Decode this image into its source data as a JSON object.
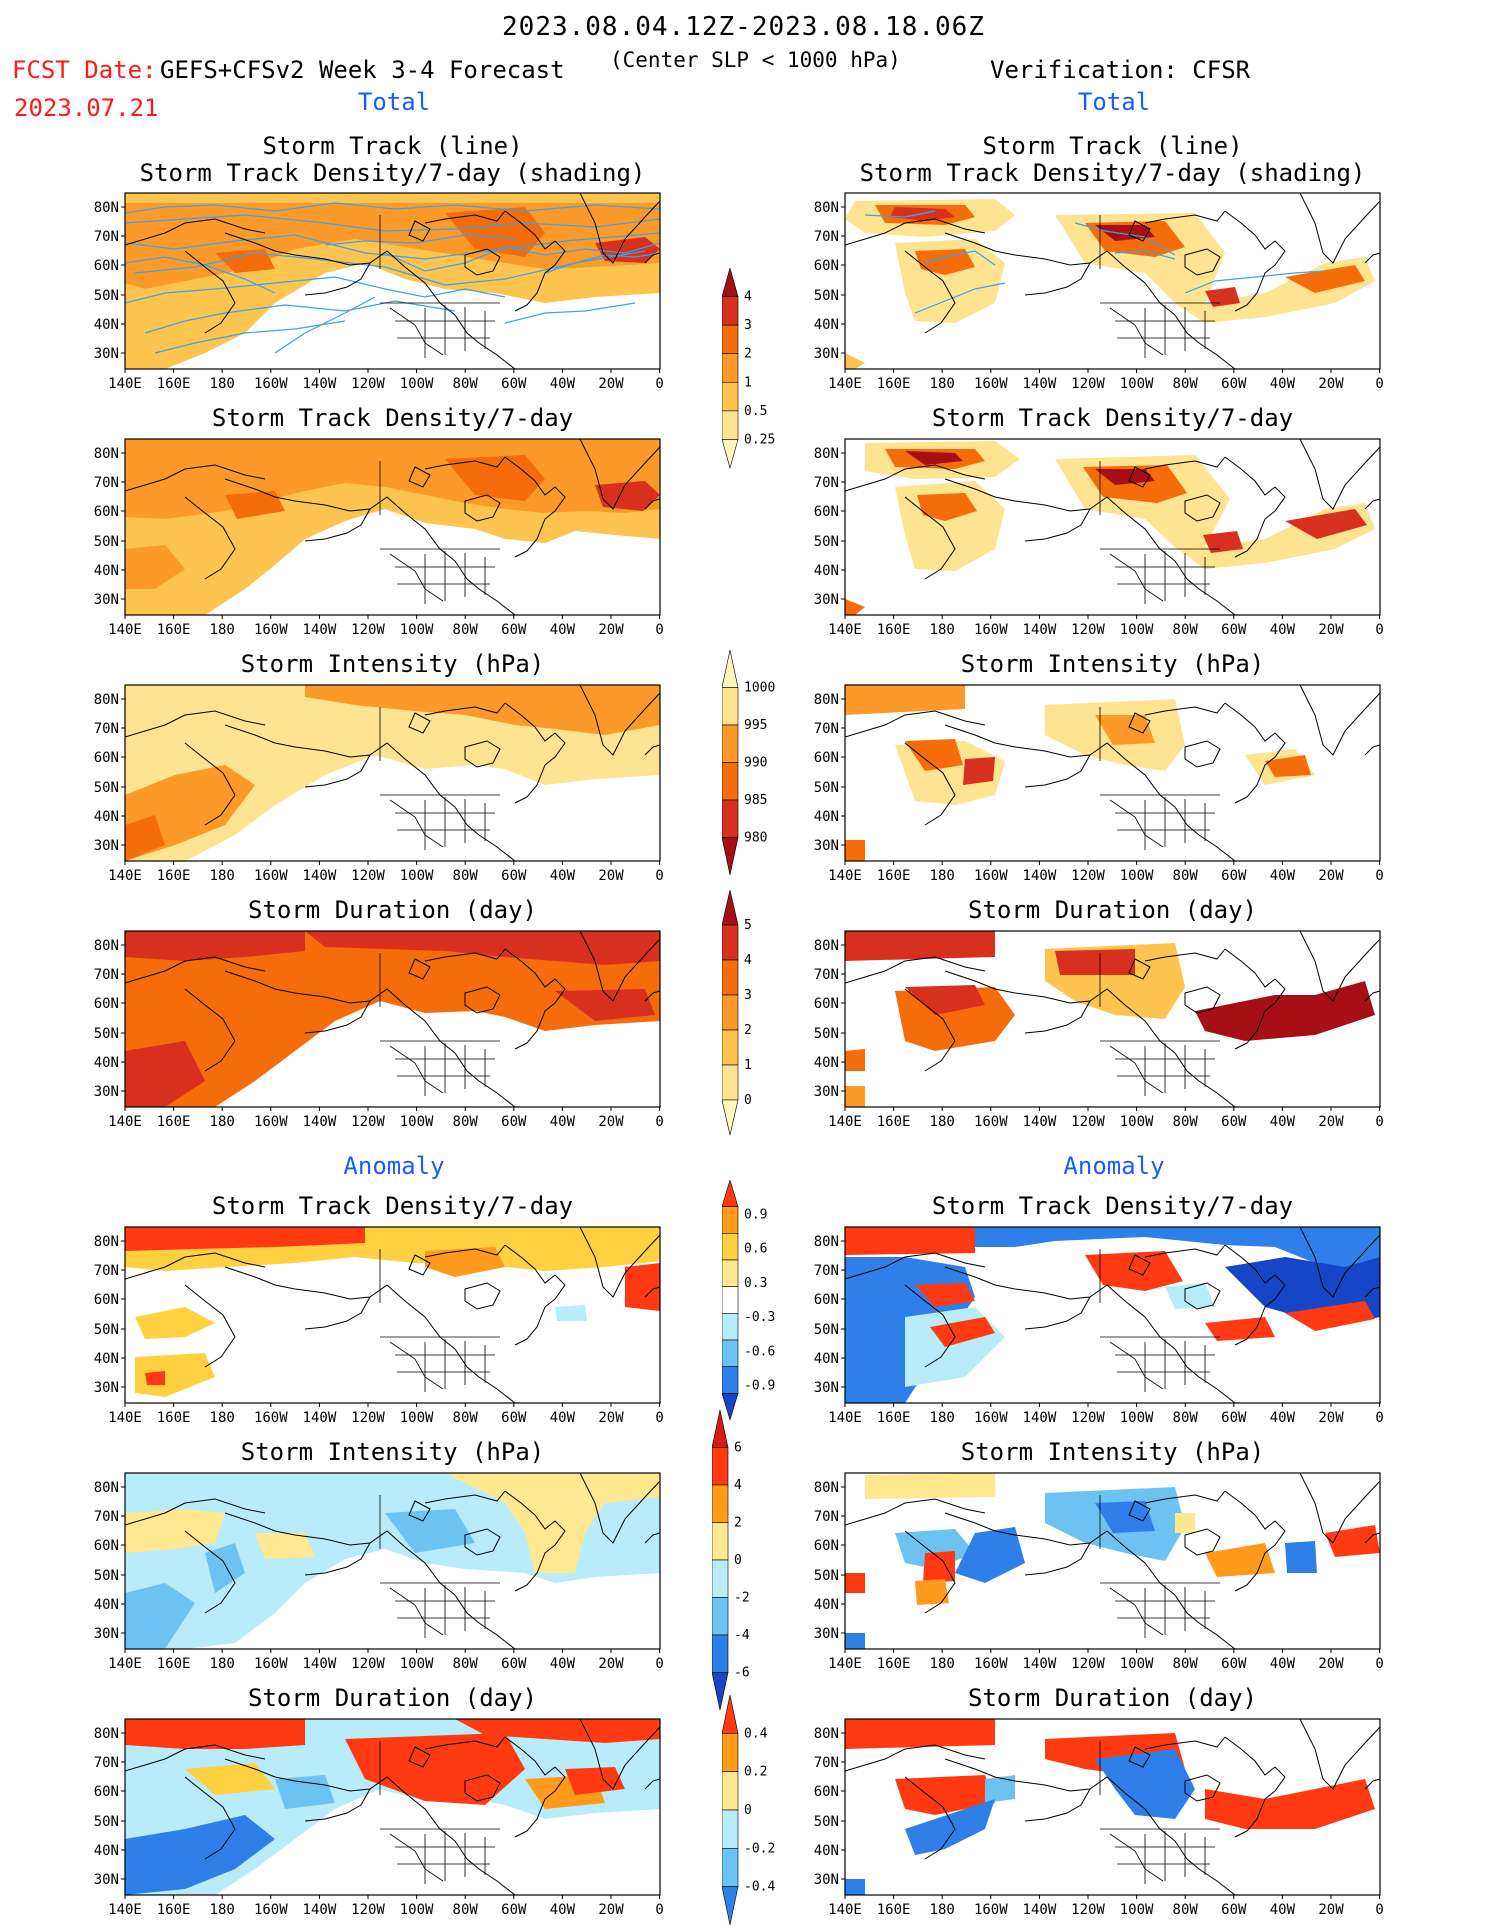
{
  "header": {
    "title": "2023.08.04.12Z-2023.08.18.06Z",
    "fcst_label": "FCST Date:",
    "fcst_date": "2023.07.21",
    "model_label": "GEFS+CFSv2 Week 3-4 Forecast",
    "center_note": "(Center SLP < 1000 hPa)",
    "verification_label": "Verification: CFSR"
  },
  "sections": {
    "total_left": "Total",
    "total_right": "Total",
    "anomaly_left": "Anomaly",
    "anomaly_right": "Anomaly"
  },
  "axis": {
    "lat_labels": [
      "80N",
      "70N",
      "60N",
      "50N",
      "40N",
      "30N"
    ],
    "lon_labels": [
      "140E",
      "160E",
      "180",
      "160W",
      "140W",
      "120W",
      "100W",
      "80W",
      "60W",
      "40W",
      "20W",
      "0"
    ]
  },
  "panel_titles": {
    "track_line": "Storm Track (line)",
    "track_density_shading": "Storm Track Density/7-day (shading)",
    "track_density": "Storm Track Density/7-day",
    "intensity": "Storm Intensity (hPa)",
    "duration": "Storm Duration (day)"
  },
  "colorbars": {
    "density_total": {
      "labels": [
        "4",
        "3",
        "2",
        "1",
        "0.5",
        "0.25"
      ],
      "colors": [
        "#a50f15",
        "#d7301f",
        "#f46d0a",
        "#fb9a29",
        "#fdc44f",
        "#fee391",
        "#fff7bc"
      ]
    },
    "intensity_total": {
      "labels": [
        "1000",
        "995",
        "990",
        "985",
        "980"
      ],
      "colors": [
        "#fff7bc",
        "#fee391",
        "#fb9a29",
        "#f46d0a",
        "#d7301f",
        "#a50f15"
      ]
    },
    "duration_total": {
      "labels": [
        "5",
        "4",
        "3",
        "2",
        "1",
        "0"
      ],
      "colors": [
        "#a50f15",
        "#d7301f",
        "#f46d0a",
        "#fb9a29",
        "#fdc44f",
        "#fee391",
        "#fff7bc"
      ]
    },
    "density_anom": {
      "labels": [
        "0.9",
        "0.6",
        "0.3",
        "-0.3",
        "-0.6",
        "-0.9"
      ],
      "colors": [
        "#ff3a12",
        "#ff9a1a",
        "#ffd040",
        "#ffe890",
        "#ffffff",
        "#b8ecfa",
        "#6cc3f2",
        "#2f7fe8",
        "#1546c8"
      ]
    },
    "intensity_anom": {
      "labels": [
        "6",
        "4",
        "2",
        "0",
        "-2",
        "-4",
        "-6"
      ],
      "colors": [
        "#d7190f",
        "#ff3a12",
        "#ff9a1a",
        "#ffe890",
        "#b8ecfa",
        "#6cc3f2",
        "#2f7fe8",
        "#1546c8"
      ]
    },
    "duration_anom": {
      "labels": [
        "0.4",
        "0.2",
        "0",
        "-0.2",
        "-0.4"
      ],
      "colors": [
        "#ff3a12",
        "#ff9a1a",
        "#ffe890",
        "#b8ecfa",
        "#6cc3f2",
        "#2f7fe8"
      ]
    }
  }
}
